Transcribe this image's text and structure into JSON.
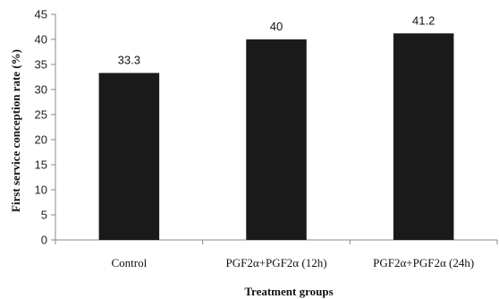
{
  "chart_data": {
    "type": "bar",
    "categories": [
      "Control",
      "PGF2α+PGF2α (12h)",
      "PGF2α+PGF2α (24h)"
    ],
    "values": [
      33.3,
      40,
      41.2
    ],
    "data_labels": [
      "33.3",
      "40",
      "41.2"
    ],
    "xlabel": "Treatment groups",
    "ylabel": "First service conception rate (%)",
    "ylim": [
      0,
      45
    ],
    "yticks": [
      0,
      5,
      10,
      15,
      20,
      25,
      30,
      35,
      40,
      45
    ],
    "grid": false,
    "legend": "none",
    "bar_color": "#1a1a1a"
  }
}
